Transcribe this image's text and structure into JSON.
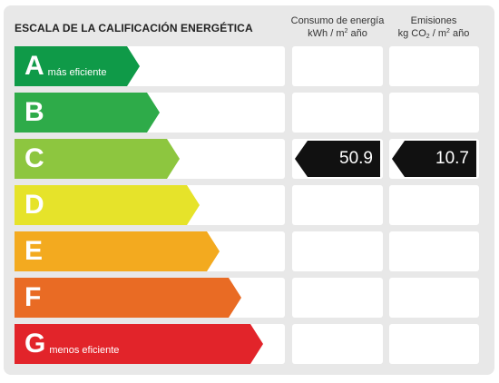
{
  "header": {
    "title": "ESCALA DE LA CALIFICACIÓN ENERGÉTICA",
    "consumo_line1": "Consumo de energía",
    "consumo_line2_pre": "kWh / m",
    "consumo_sup": "2",
    "consumo_line2_post": " año",
    "emisiones_line1": "Emisiones",
    "emisiones_pre": "kg CO",
    "emisiones_sub": "2",
    "emisiones_mid": " / m",
    "emisiones_sup": "2",
    "emisiones_post": " año"
  },
  "ratings": [
    {
      "letter": "A",
      "label": "más eficiente",
      "color": "#0f9a48"
    },
    {
      "letter": "B",
      "label": "",
      "color": "#2eab49"
    },
    {
      "letter": "C",
      "label": "",
      "color": "#8dc63f"
    },
    {
      "letter": "D",
      "label": "",
      "color": "#e6e32a"
    },
    {
      "letter": "E",
      "label": "",
      "color": "#f3aa1f"
    },
    {
      "letter": "F",
      "label": "",
      "color": "#e96b24"
    },
    {
      "letter": "G",
      "label": "menos eficiente",
      "color": "#e2242a"
    }
  ],
  "current": {
    "rating": "C",
    "consumo_value": "50.9",
    "emisiones_value": "10.7"
  }
}
